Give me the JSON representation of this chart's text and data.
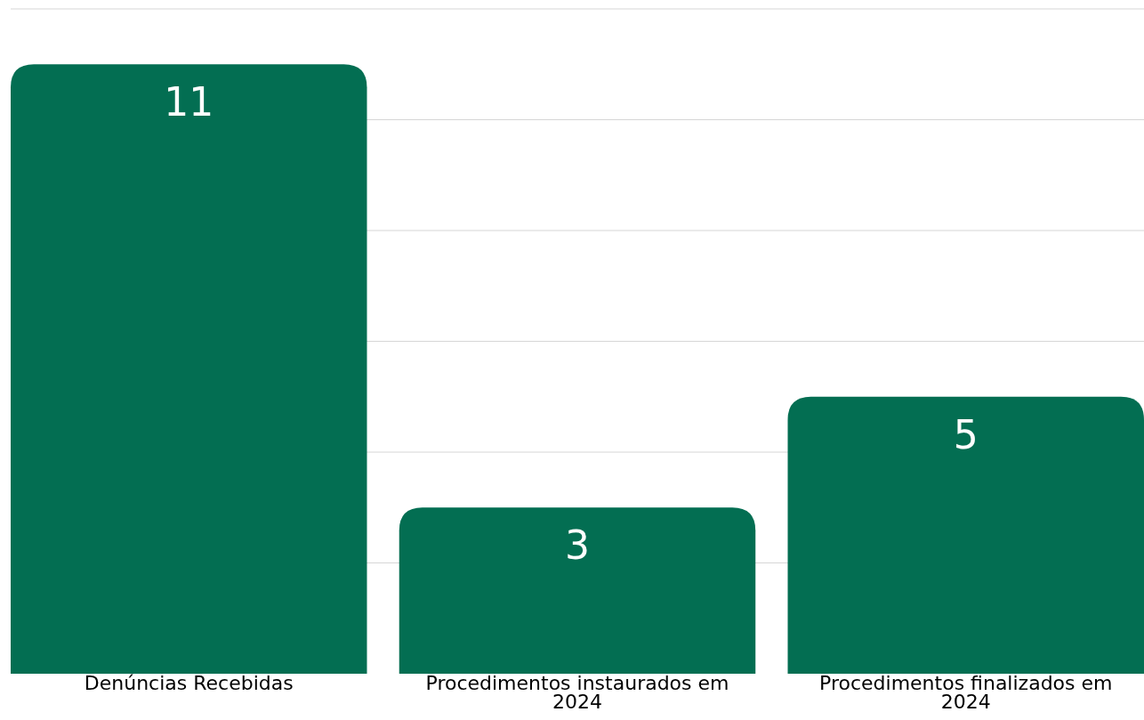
{
  "chart_data": {
    "type": "bar",
    "categories": [
      "Denúncias Recebidas",
      "Procedimentos instaurados em 2024",
      "Procedimentos finalizados em 2024"
    ],
    "values": [
      11,
      3,
      5
    ],
    "color": "#036e52",
    "data_labels": true,
    "ylim": [
      0,
      12
    ],
    "yticks": [
      {
        "value": 2,
        "label": null
      },
      {
        "value": 4,
        "label": null
      },
      {
        "value": 6,
        "label": null
      },
      {
        "value": 8,
        "label": null
      },
      {
        "value": 10,
        "label": null
      },
      {
        "value": 12,
        "label": null
      }
    ],
    "grid": "y",
    "tick_labels": "x"
  }
}
